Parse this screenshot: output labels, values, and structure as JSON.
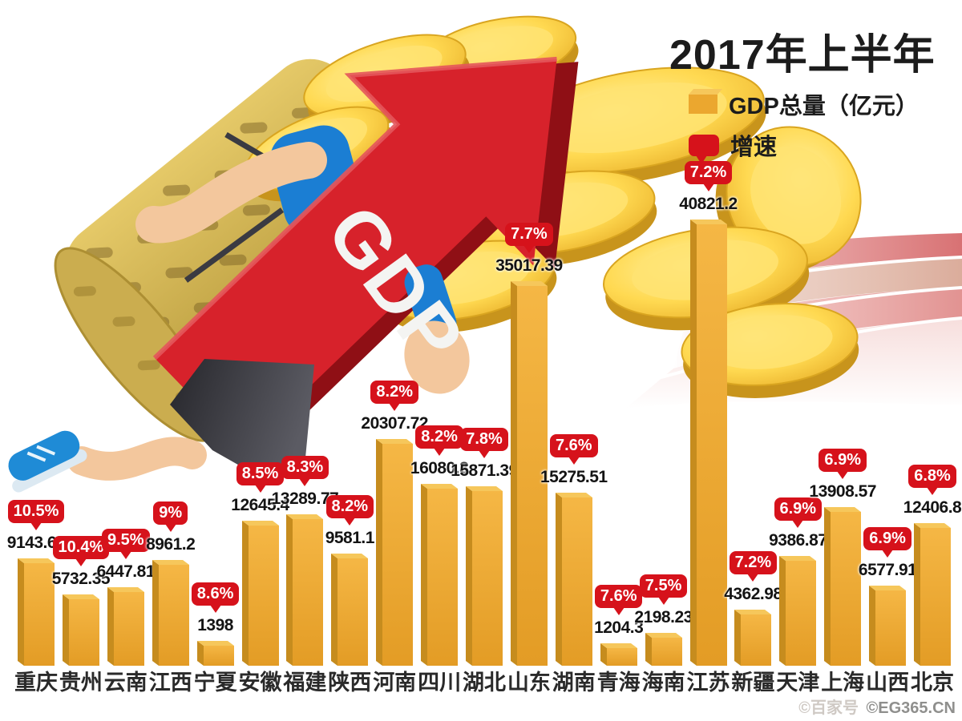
{
  "header": {
    "title": "2017年上半年"
  },
  "illustration": {
    "arrow_label": "GDP",
    "description": "runner carrying basket of gold coins with red GDP arrow"
  },
  "watermark": {
    "text1": "©百家号",
    "text2": "©EG365.CN"
  },
  "colors": {
    "bar_gold": "#EFA93A",
    "bar_side": "#C68C1E",
    "bar_top": "#F6C75B",
    "badge_red": "#D6121B",
    "arrow_red": "#D7222B",
    "coin_gold": "#F5C83F",
    "basket": "#C4A748",
    "track_pink": "#DD8A8A"
  },
  "chart_data": {
    "type": "bar",
    "title": "2017年上半年",
    "unit": "亿元",
    "legend": [
      "GDP总量（亿元）",
      "增速"
    ],
    "legend_position": "top-right",
    "categories": [
      "重庆",
      "贵州",
      "云南",
      "江西",
      "宁夏",
      "安徽",
      "福建",
      "陕西",
      "河南",
      "四川",
      "湖北",
      "山东",
      "湖南",
      "青海",
      "海南",
      "江苏",
      "新疆",
      "天津",
      "上海",
      "山西",
      "北京"
    ],
    "series": [
      {
        "name": "GDP总量（亿元）",
        "values": [
          9143.64,
          5732.35,
          6447.81,
          8961.2,
          1398,
          12645.4,
          13289.77,
          9581.1,
          20307.72,
          16080.3,
          15871.39,
          35017.39,
          15275.51,
          1204.3,
          2198.23,
          40821.2,
          4362.98,
          9386.87,
          13908.57,
          6577.91,
          12406.8
        ]
      },
      {
        "name": "增速",
        "values": [
          "10.5%",
          "10.4%",
          "9.5%",
          "9%",
          "8.6%",
          "8.5%",
          "8.3%",
          "8.2%",
          "8.2%",
          "8.2%",
          "7.8%",
          "7.7%",
          "7.6%",
          "7.6%",
          "7.5%",
          "7.2%",
          "7.2%",
          "6.9%",
          "6.9%",
          "6.9%",
          "6.8%"
        ]
      }
    ],
    "ylim": [
      0,
      40821.2
    ],
    "grid": false
  }
}
